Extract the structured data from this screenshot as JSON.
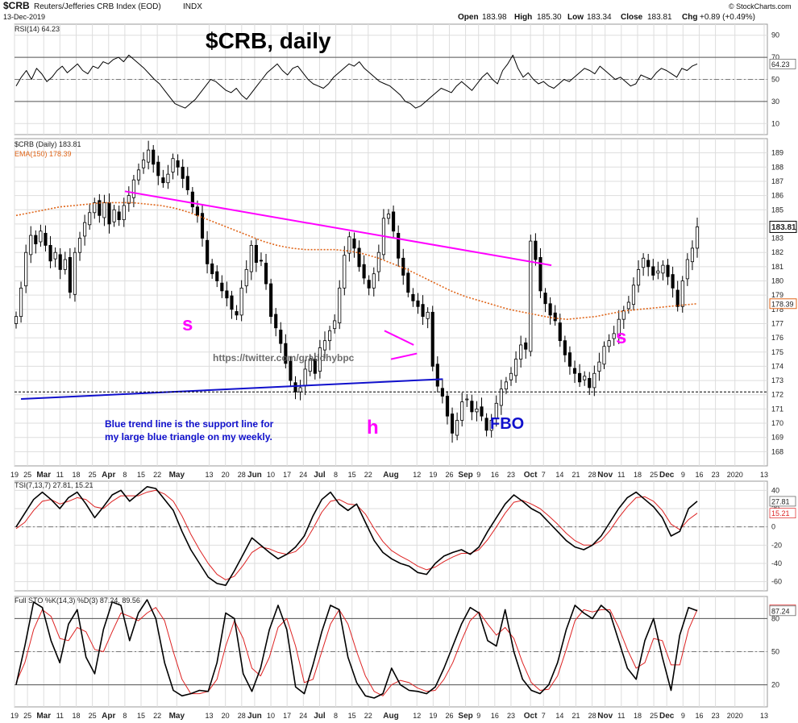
{
  "header": {
    "symbol": "$CRB",
    "name": "Reuters/Jefferies CRB Index (EOD)",
    "exchange": "INDX",
    "date": "13-Dec-2019",
    "open_label": "Open",
    "open": "183.98",
    "high_label": "High",
    "high": "185.30",
    "low_label": "Low",
    "low": "183.34",
    "close_label": "Close",
    "close": "183.81",
    "chg_label": "Chg",
    "chg": "+0.89 (+0.49%)",
    "watermark": "© StockCharts.com"
  },
  "colors": {
    "price": "#000000",
    "ema": "#e0661a",
    "magenta": "#ff00ff",
    "blue_line": "#1010cc",
    "blue_text": "#1010cc",
    "signal": "#dd2222",
    "grid": "#dddddd",
    "rsi_fill": "#e07a7a"
  },
  "chart_data": [
    {
      "type": "line",
      "panel": "rsi",
      "legend": "RSI(14) 64.23",
      "last_value_label": "64.23",
      "ylim": [
        0,
        100
      ],
      "yticks": [
        10,
        30,
        50,
        70,
        90
      ],
      "series": [
        {
          "name": "RSI(14)",
          "values": [
            44,
            52,
            58,
            50,
            60,
            55,
            48,
            52,
            58,
            62,
            56,
            60,
            64,
            58,
            55,
            62,
            60,
            66,
            64,
            68,
            70,
            66,
            72,
            68,
            64,
            60,
            55,
            50,
            46,
            40,
            34,
            28,
            26,
            24,
            28,
            32,
            38,
            44,
            50,
            48,
            44,
            40,
            38,
            42,
            36,
            32,
            38,
            44,
            50,
            56,
            60,
            64,
            58,
            54,
            60,
            62,
            56,
            50,
            46,
            44,
            42,
            46,
            52,
            56,
            60,
            64,
            62,
            66,
            60,
            56,
            52,
            48,
            46,
            44,
            40,
            36,
            30,
            28,
            24,
            26,
            30,
            34,
            38,
            42,
            40,
            38,
            44,
            48,
            44,
            40,
            46,
            52,
            56,
            50,
            46,
            58,
            64,
            72,
            60,
            52,
            56,
            50,
            46,
            48,
            44,
            42,
            46,
            50,
            48,
            52,
            56,
            60,
            58,
            55,
            62,
            58,
            54,
            50,
            52,
            48,
            44,
            46,
            54,
            52,
            50,
            56,
            60,
            58,
            55,
            52,
            60,
            58,
            62,
            64
          ]
        }
      ]
    },
    {
      "type": "candlestick",
      "panel": "price",
      "title": "$CRB, daily",
      "legend": "$CRB (Daily) 183.81",
      "ema_legend": "EMA(150) 178.39",
      "last_price_label": "183.81",
      "ema_last_label": "178.39",
      "ylim": [
        167,
        190
      ],
      "yticks": [
        168,
        169,
        170,
        171,
        172,
        173,
        174,
        175,
        176,
        177,
        178,
        179,
        180,
        181,
        182,
        183,
        184,
        185,
        186,
        187,
        188,
        189
      ],
      "closes": [
        177.5,
        179.5,
        182.0,
        183.2,
        182.6,
        183.5,
        182.5,
        181.4,
        182.0,
        180.8,
        181.5,
        179.2,
        182.0,
        183.0,
        184.1,
        184.8,
        185.5,
        184.6,
        185.5,
        184.0,
        185.0,
        184.3,
        185.3,
        186.0,
        187.1,
        187.8,
        188.5,
        189.2,
        188.2,
        187.4,
        186.9,
        187.5,
        188.6,
        188.0,
        187.2,
        186.4,
        185.2,
        184.6,
        183.0,
        181.2,
        180.5,
        180.0,
        179.3,
        178.8,
        178.0,
        177.6,
        179.5,
        180.8,
        182.5,
        181.3,
        181.4,
        179.8,
        177.5,
        176.7,
        175.6,
        174.2,
        173.0,
        172.2,
        172.5,
        173.8,
        174.5,
        173.5,
        175.3,
        175.8,
        176.5,
        177.2,
        179.5,
        181.8,
        183.1,
        182.3,
        181.0,
        180.2,
        179.5,
        180.5,
        182.0,
        184.4,
        184.7,
        183.5,
        181.6,
        180.4,
        179.2,
        178.6,
        178.2,
        177.5,
        177.8,
        174.0,
        172.6,
        171.9,
        170.5,
        169.3,
        170.2,
        171.5,
        171.7,
        170.8,
        171.0,
        170.5,
        169.5,
        170.2,
        171.4,
        172.4,
        172.9,
        173.5,
        174.5,
        175.5,
        175.2,
        182.8,
        181.5,
        179.3,
        178.4,
        177.6,
        177.2,
        175.8,
        174.8,
        174.0,
        173.5,
        172.9,
        173.3,
        172.5,
        173.5,
        174.3,
        175.4,
        175.8,
        176.3,
        177.3,
        177.9,
        178.5,
        179.7,
        180.8,
        181.6,
        181.0,
        180.4,
        180.7,
        181.1,
        180.3,
        179.5,
        178.2,
        180.0,
        181.5,
        182.3,
        183.8
      ],
      "ema150": [
        184.6,
        184.8,
        185.0,
        185.2,
        185.3,
        185.4,
        185.5,
        185.5,
        185.5,
        185.4,
        185.3,
        185.1,
        184.8,
        184.4,
        184.0,
        183.6,
        183.2,
        182.8,
        182.5,
        182.3,
        182.2,
        182.2,
        182.2,
        182.1,
        181.9,
        181.6,
        181.2,
        180.8,
        180.3,
        179.8,
        179.3,
        178.9,
        178.6,
        178.3,
        178.0,
        177.8,
        177.6,
        177.4,
        177.3,
        177.4,
        177.5,
        177.7,
        177.9,
        178.0,
        178.1,
        178.2,
        178.3,
        178.4
      ],
      "ema_label": "EMA(150)",
      "annotations": [
        {
          "text": "s",
          "kind": "shoulder"
        },
        {
          "text": "h",
          "kind": "head"
        },
        {
          "text": "FBO",
          "kind": "false-breakout"
        },
        {
          "text": "s",
          "kind": "shoulder"
        },
        {
          "text": "https://twitter.com/graddhybpc",
          "kind": "watermark"
        },
        {
          "text": "Blue trend line is the support line for",
          "kind": "note"
        },
        {
          "text": "my large blue triangle on my weekly.",
          "kind": "note"
        }
      ],
      "trendlines": [
        {
          "name": "descending resistance",
          "color": "magenta",
          "from": {
            "index": 34,
            "price": 186.3
          },
          "to": {
            "index": 158,
            "price": 181.1
          }
        },
        {
          "name": "rising support",
          "color": "blue",
          "from": {
            "index": 2,
            "price": 171.7
          },
          "to": {
            "index": 132,
            "price": 173.1
          }
        },
        {
          "name": "flag upper",
          "color": "magenta",
          "from": {
            "index": 114,
            "price": 176.5
          },
          "to": {
            "index": 123,
            "price": 175.5
          }
        },
        {
          "name": "flag lower",
          "color": "magenta",
          "from": {
            "index": 116,
            "price": 174.5
          },
          "to": {
            "index": 124,
            "price": 174.9
          }
        }
      ],
      "reference_line": {
        "price": 172.2,
        "style": "dashed"
      }
    },
    {
      "type": "line",
      "panel": "tsi",
      "legend": "TSI(7,13,7) 27.81, 15.21",
      "last_labels": [
        "27.81",
        "15.21"
      ],
      "ylim": [
        -70,
        50
      ],
      "yticks": [
        -60,
        -40,
        -20,
        0,
        20,
        40
      ],
      "series": [
        {
          "name": "TSI(7,13,7)",
          "values": [
            0,
            15,
            30,
            38,
            30,
            20,
            32,
            38,
            25,
            10,
            22,
            35,
            40,
            28,
            36,
            44,
            42,
            30,
            18,
            -5,
            -25,
            -40,
            -55,
            -62,
            -64,
            -48,
            -30,
            -12,
            -20,
            -28,
            -35,
            -30,
            -22,
            -10,
            12,
            30,
            38,
            25,
            18,
            25,
            5,
            -15,
            -28,
            -35,
            -40,
            -43,
            -50,
            -52,
            -40,
            -32,
            -28,
            -25,
            -30,
            -22,
            -5,
            10,
            25,
            35,
            28,
            20,
            15,
            5,
            -5,
            -15,
            -22,
            -25,
            -20,
            -10,
            5,
            20,
            32,
            38,
            30,
            22,
            10,
            -10,
            -5,
            20,
            28
          ]
        },
        {
          "name": "signal",
          "values": [
            -2,
            5,
            18,
            28,
            30,
            25,
            28,
            32,
            30,
            22,
            20,
            28,
            34,
            34,
            34,
            38,
            40,
            36,
            28,
            12,
            -8,
            -25,
            -40,
            -52,
            -58,
            -54,
            -42,
            -28,
            -22,
            -24,
            -28,
            -30,
            -27,
            -18,
            -2,
            16,
            28,
            30,
            25,
            24,
            14,
            -2,
            -16,
            -26,
            -32,
            -37,
            -43,
            -47,
            -44,
            -38,
            -33,
            -29,
            -29,
            -25,
            -14,
            0,
            15,
            27,
            29,
            25,
            20,
            12,
            3,
            -7,
            -15,
            -20,
            -20,
            -15,
            -4,
            10,
            22,
            32,
            33,
            28,
            18,
            3,
            -3,
            8,
            15
          ]
        }
      ]
    },
    {
      "type": "line",
      "panel": "sto",
      "legend": "Full STO %K(14,3) %D(3) 87.24, 89.56",
      "last_labels": [
        "87.24",
        "89.56"
      ],
      "ylim": [
        0,
        100
      ],
      "yticks": [
        20,
        50,
        80
      ],
      "series": [
        {
          "name": "%K(14,3)",
          "values": [
            20,
            55,
            95,
            90,
            60,
            40,
            75,
            88,
            45,
            30,
            70,
            95,
            92,
            60,
            85,
            97,
            80,
            40,
            15,
            10,
            12,
            15,
            14,
            40,
            85,
            80,
            30,
            14,
            35,
            70,
            92,
            70,
            18,
            12,
            38,
            68,
            92,
            88,
            45,
            22,
            10,
            8,
            12,
            35,
            20,
            15,
            14,
            12,
            18,
            35,
            55,
            75,
            90,
            85,
            60,
            55,
            88,
            50,
            25,
            15,
            12,
            20,
            40,
            70,
            92,
            85,
            80,
            92,
            85,
            60,
            35,
            25,
            60,
            80,
            45,
            15,
            65,
            90,
            87
          ]
        },
        {
          "name": "%D(3)",
          "values": [
            22,
            40,
            70,
            88,
            82,
            62,
            60,
            72,
            68,
            52,
            50,
            68,
            85,
            82,
            78,
            85,
            90,
            78,
            50,
            25,
            12,
            12,
            14,
            25,
            55,
            78,
            62,
            35,
            28,
            45,
            72,
            80,
            55,
            22,
            25,
            50,
            75,
            88,
            75,
            50,
            28,
            14,
            10,
            20,
            24,
            22,
            17,
            14,
            15,
            25,
            40,
            60,
            78,
            86,
            75,
            65,
            72,
            62,
            40,
            22,
            15,
            16,
            28,
            52,
            78,
            88,
            86,
            88,
            88,
            72,
            52,
            35,
            40,
            62,
            60,
            38,
            38,
            70,
            88
          ]
        }
      ]
    },
    {
      "type": "axis",
      "panel": "x-axis",
      "labels": [
        {
          "text": "19",
          "index": 0
        },
        {
          "text": "25",
          "index": 4
        },
        {
          "text": "Mar",
          "index": 9
        },
        {
          "text": "11",
          "index": 14
        },
        {
          "text": "18",
          "index": 19
        },
        {
          "text": "25",
          "index": 24
        },
        {
          "text": "Apr",
          "index": 29
        },
        {
          "text": "8",
          "index": 34
        },
        {
          "text": "15",
          "index": 39
        },
        {
          "text": "22",
          "index": 44
        },
        {
          "text": "May",
          "index": 50
        },
        {
          "text": "13",
          "index": 60
        },
        {
          "text": "20",
          "index": 65
        },
        {
          "text": "28",
          "index": 70
        },
        {
          "text": "Jun",
          "index": 74
        },
        {
          "text": "10",
          "index": 79
        },
        {
          "text": "17",
          "index": 84
        },
        {
          "text": "24",
          "index": 89
        },
        {
          "text": "Jul",
          "index": 94
        },
        {
          "text": "8",
          "index": 99
        },
        {
          "text": "15",
          "index": 104
        },
        {
          "text": "22",
          "index": 109
        },
        {
          "text": "Aug",
          "index": 116
        },
        {
          "text": "12",
          "index": 124
        },
        {
          "text": "19",
          "index": 129
        },
        {
          "text": "26",
          "index": 134
        },
        {
          "text": "Sep",
          "index": 139
        },
        {
          "text": "9",
          "index": 143
        },
        {
          "text": "16",
          "index": 148
        },
        {
          "text": "23",
          "index": 153
        },
        {
          "text": "Oct",
          "index": 159
        },
        {
          "text": "7",
          "index": 163
        },
        {
          "text": "14",
          "index": 168
        },
        {
          "text": "21",
          "index": 173
        },
        {
          "text": "28",
          "index": 178
        },
        {
          "text": "Nov",
          "index": 182
        },
        {
          "text": "11",
          "index": 187
        },
        {
          "text": "18",
          "index": 192
        },
        {
          "text": "25",
          "index": 197
        },
        {
          "text": "Dec",
          "index": 201
        },
        {
          "text": "9",
          "index": 206
        },
        {
          "text": "16",
          "index": 211
        },
        {
          "text": "23",
          "index": 216
        },
        {
          "text": "2020",
          "index": 222
        },
        {
          "text": "13",
          "index": 231
        }
      ]
    }
  ]
}
